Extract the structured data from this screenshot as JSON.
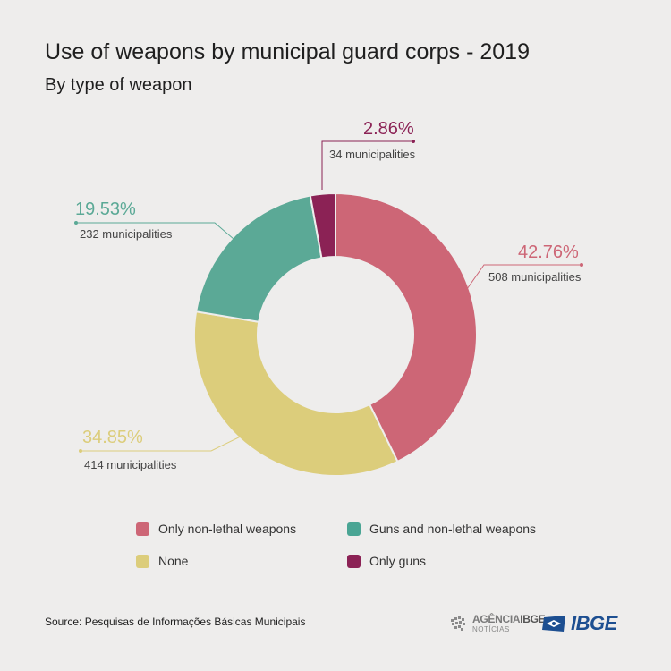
{
  "title": "Use of weapons by municipal guard corps - 2019",
  "subtitle": "By type of weapon",
  "source": "Source: Pesquisas de Informações Básicas Municipais",
  "logos": {
    "agencia_main": "AGÊNCIA",
    "agencia_bold": "IBGE",
    "agencia_sub": "NOTÍCIAS",
    "ibge": "IBGE"
  },
  "chart_data": {
    "type": "pie",
    "style": "donut",
    "categories": [
      "Only non-lethal weapons",
      "None",
      "Guns and non-lethal weapons",
      "Only guns"
    ],
    "values": [
      42.76,
      34.85,
      19.53,
      2.86
    ],
    "labels": [
      "42.76%",
      "34.85%",
      "19.53%",
      "2.86%"
    ],
    "counts": [
      "508 municipalities",
      "414 municipalities",
      "232 municipalities",
      "34 municipalities"
    ],
    "colors": [
      "#cd6676",
      "#dccd7b",
      "#5ba996",
      "#8b2255"
    ],
    "legend_position": "bottom"
  },
  "legend": [
    {
      "label": "Only non-lethal weapons",
      "color": "#cd6676"
    },
    {
      "label": "Guns and non-lethal weapons",
      "color": "#4aa594"
    },
    {
      "label": "None",
      "color": "#dccd7b"
    },
    {
      "label": "Only guns",
      "color": "#8b2255"
    }
  ]
}
